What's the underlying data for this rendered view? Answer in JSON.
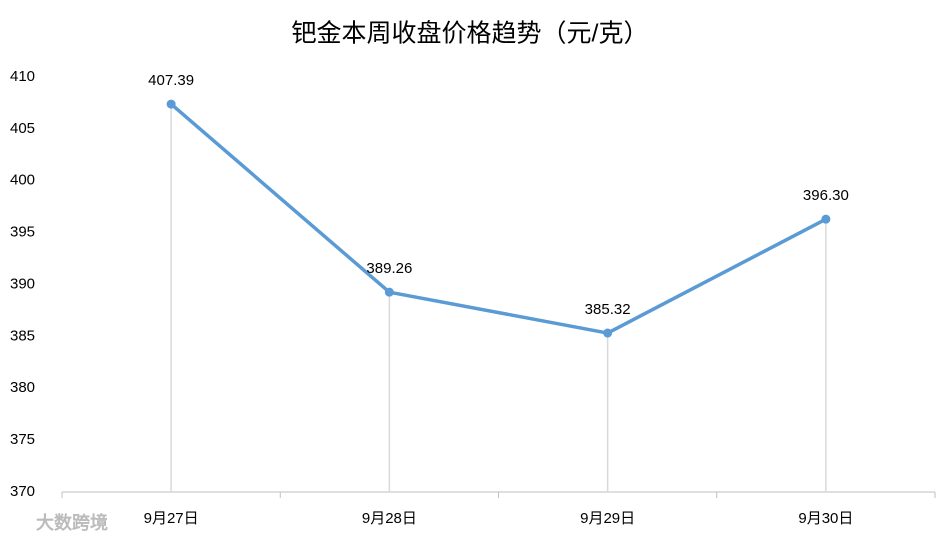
{
  "chart_data": {
    "type": "line",
    "title": "钯金本周收盘价格趋势（元/克）",
    "categories": [
      "9月27日",
      "9月28日",
      "9月29日",
      "9月30日"
    ],
    "values": [
      407.39,
      389.26,
      385.32,
      396.3
    ],
    "value_labels": [
      "407.39",
      "389.26",
      "385.32",
      "396.30"
    ],
    "color": "#5b9bd5",
    "ylim": [
      370,
      410
    ],
    "yticks": [
      370,
      375,
      380,
      385,
      390,
      395,
      400,
      405,
      410
    ],
    "drop_lines": true,
    "grid": false
  },
  "watermark": "大数跨境"
}
